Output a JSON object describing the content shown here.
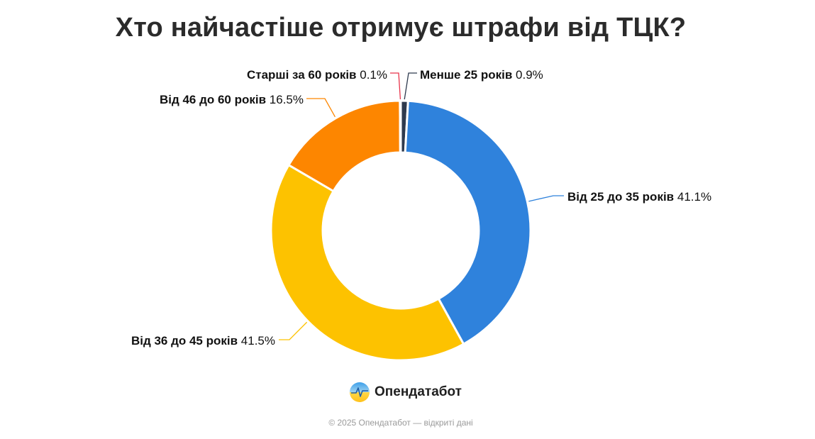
{
  "chart_data": {
    "type": "pie",
    "title": "Хто найчастіше отримує штрафи від ТЦК?",
    "categories": [
      "Менше 25 років",
      "Від 25 до 35 років",
      "Від 36 до 45 років",
      "Від 46 до 60 років",
      "Старші за 60 років"
    ],
    "values": [
      0.9,
      41.1,
      41.5,
      16.5,
      0.1
    ],
    "value_labels": [
      "0.9%",
      "41.1%",
      "41.5%",
      "16.5%",
      "0.1%"
    ],
    "colors": [
      "#2e3a4e",
      "#2f82dc",
      "#fdc200",
      "#fd8600",
      "#e8334a"
    ],
    "donut": true
  },
  "brand": {
    "name": "Опендатабот",
    "logo_icon": "opendatabot-logo-icon"
  },
  "footer": "© 2025 Опендатабот — відкриті дані"
}
